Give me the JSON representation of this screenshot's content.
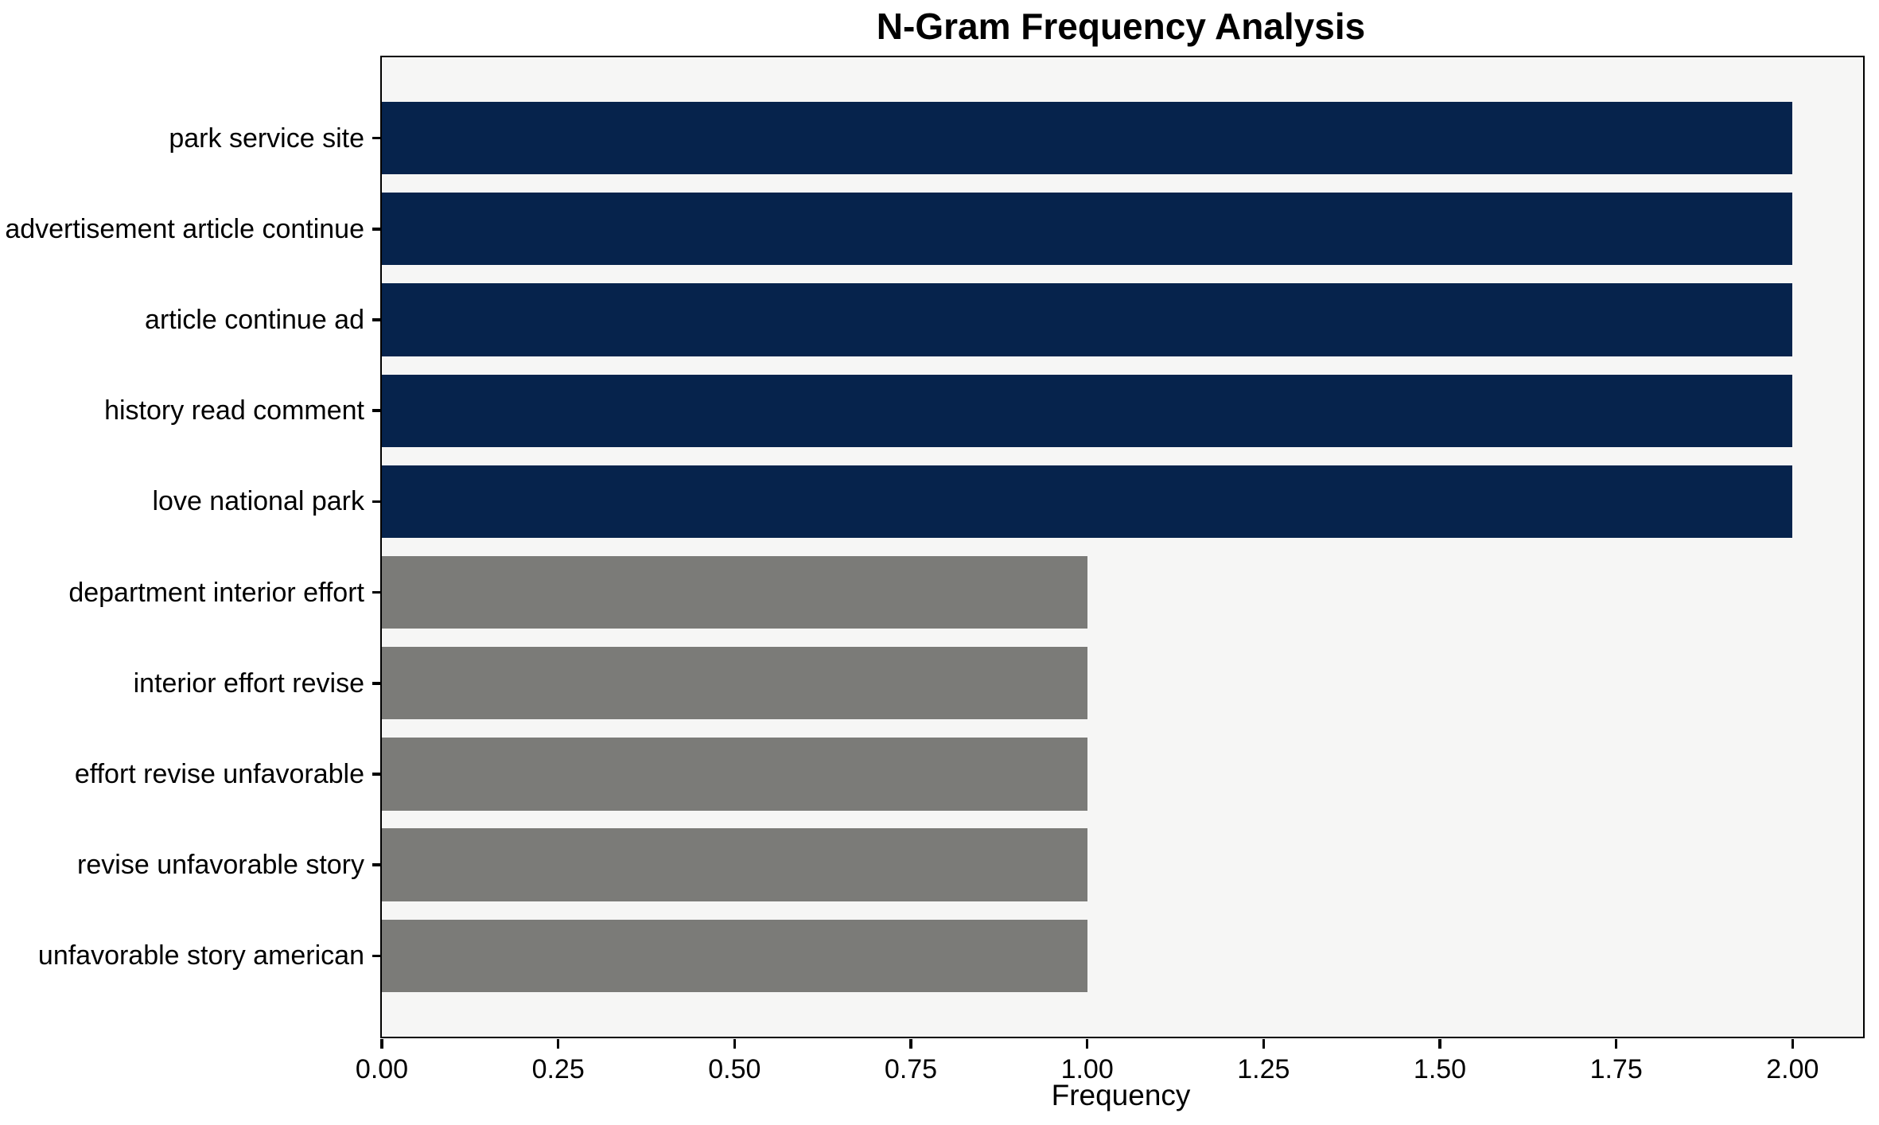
{
  "chart_data": {
    "type": "bar",
    "orientation": "horizontal",
    "title": "N-Gram Frequency Analysis",
    "xlabel": "Frequency",
    "ylabel": "",
    "categories": [
      "park service site",
      "advertisement article continue",
      "article continue ad",
      "history read comment",
      "love national park",
      "department interior effort",
      "interior effort revise",
      "effort revise unfavorable",
      "revise unfavorable story",
      "unfavorable story american"
    ],
    "values": [
      2,
      2,
      2,
      2,
      2,
      1,
      1,
      1,
      1,
      1
    ],
    "bar_colors": [
      "#06234c",
      "#06234c",
      "#06234c",
      "#06234c",
      "#06234c",
      "#7b7b78",
      "#7b7b78",
      "#7b7b78",
      "#7b7b78",
      "#7b7b78"
    ],
    "xlim": [
      0,
      2.1
    ],
    "xticks": [
      0,
      0.25,
      0.5,
      0.75,
      1.0,
      1.25,
      1.5,
      1.75,
      2.0
    ],
    "xtick_labels": [
      "0.00",
      "0.25",
      "0.50",
      "0.75",
      "1.00",
      "1.25",
      "1.50",
      "1.75",
      "2.00"
    ],
    "grid": false,
    "legend": null,
    "colors": {
      "plot_background": "#f6f6f5",
      "figure_background": "#ffffff",
      "spine": "#000000",
      "text": "#000000"
    }
  }
}
